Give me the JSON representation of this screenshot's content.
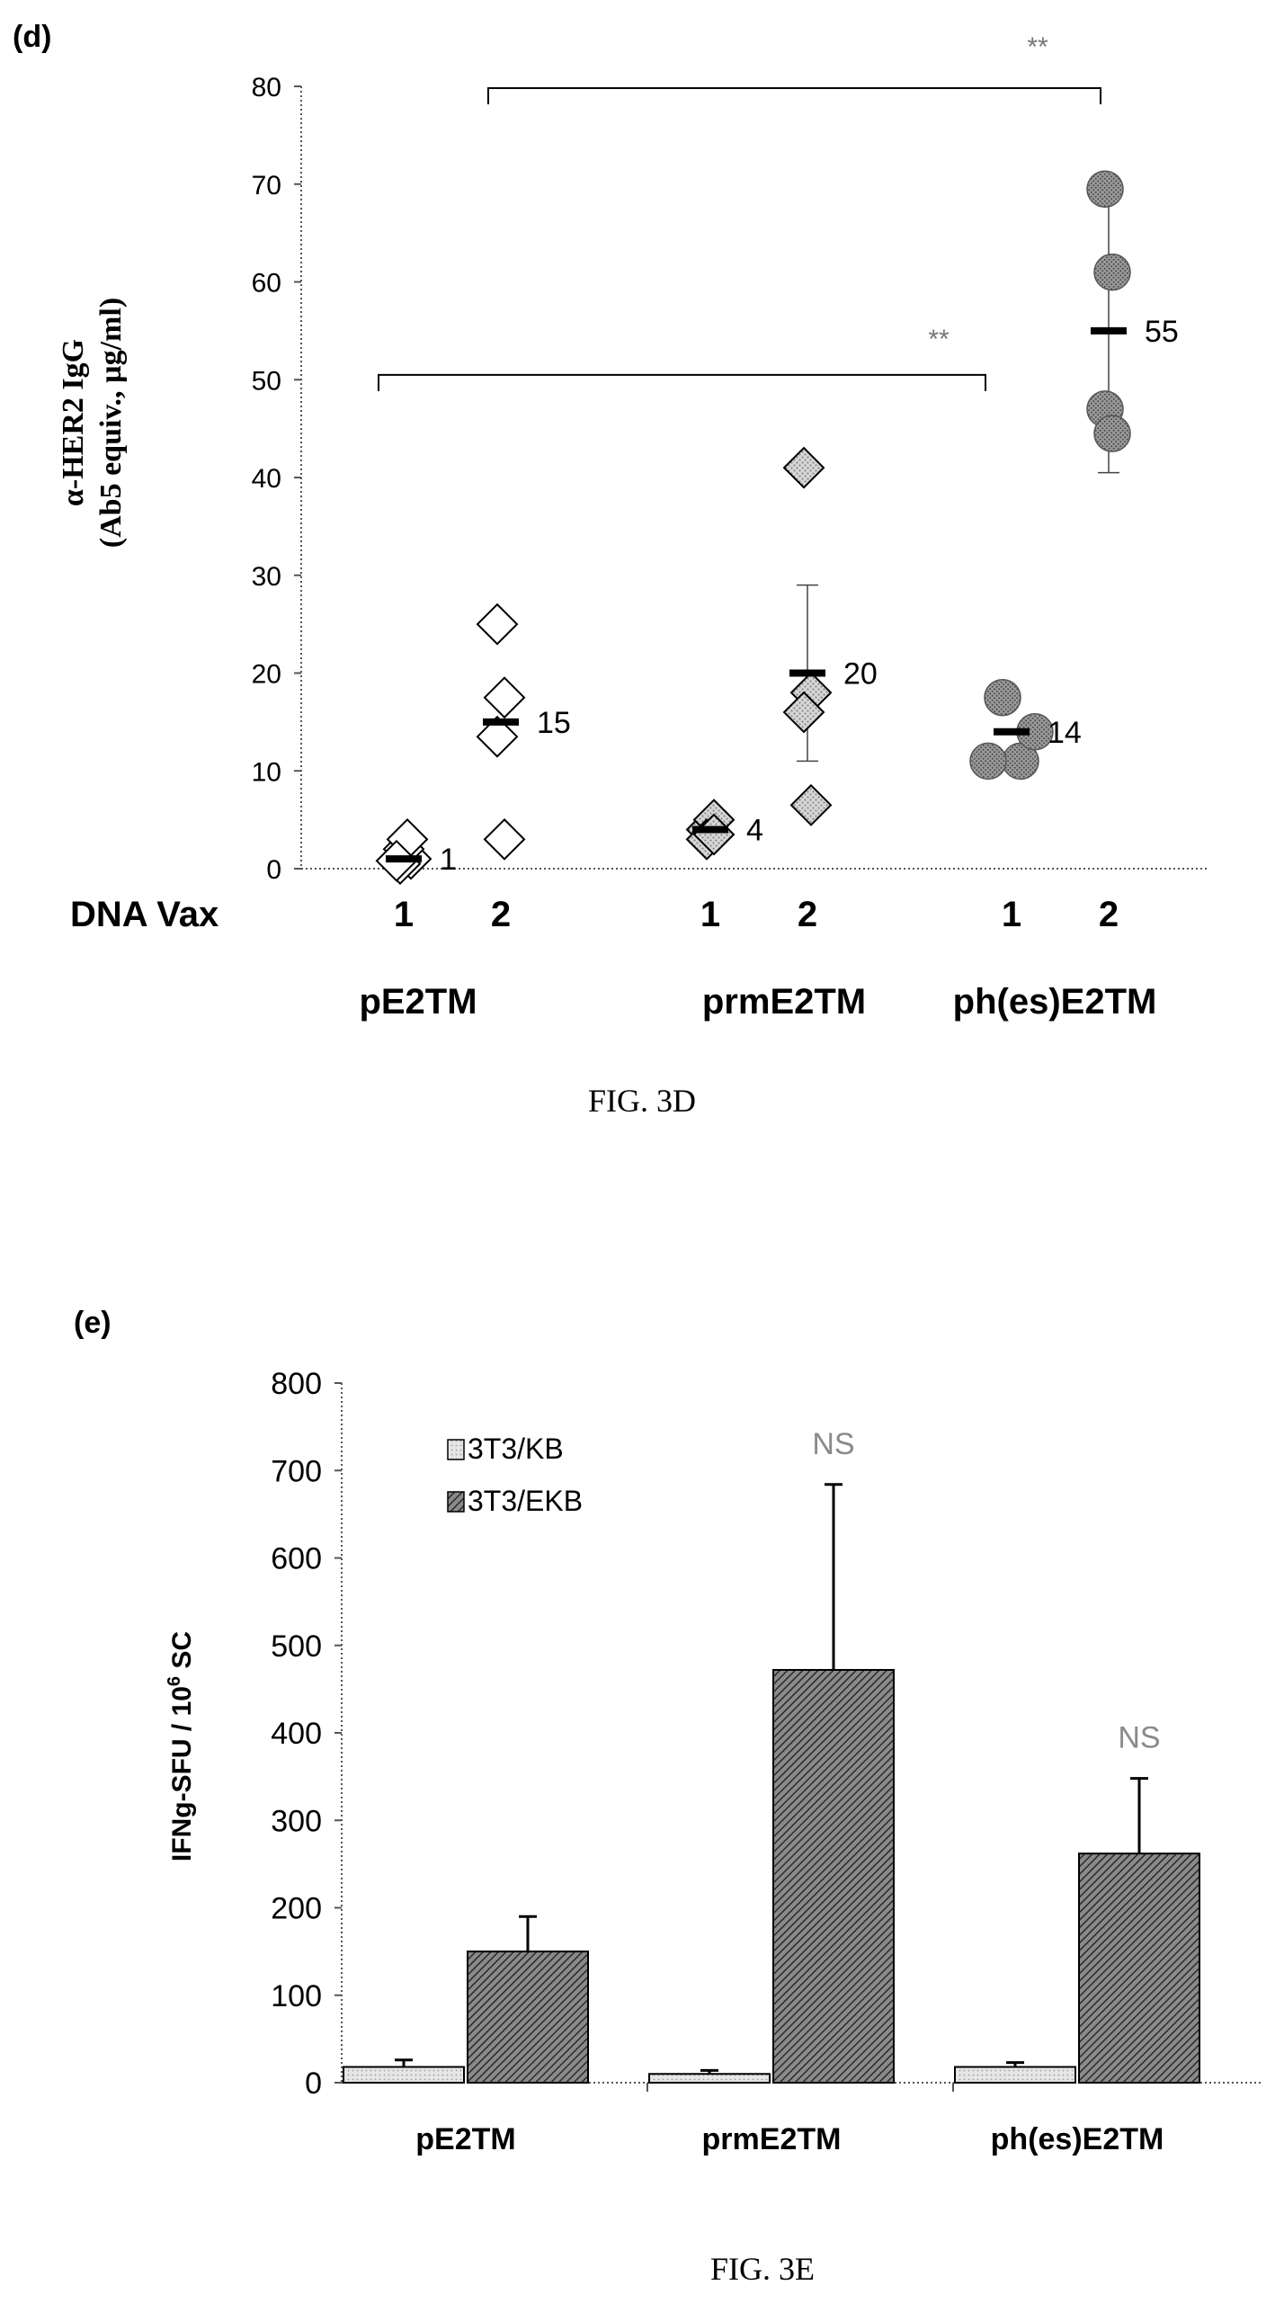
{
  "colors": {
    "ink": "#000000",
    "panel_d_group1_fill": "#ffffff",
    "panel_d_group2_fill": "#cfcfcf",
    "panel_d_group3_fill": "#8f8f8f",
    "bar_3T3_KB": "#dedede",
    "bar_3T3_EKB": "#7a7a7a",
    "ns_text": "#8a8a8a"
  },
  "panel_d": {
    "panel_label": "(d)",
    "caption": "FIG. 3D",
    "x_row_label": "DNA Vax"
  },
  "panel_e": {
    "panel_label": "(e)",
    "caption": "FIG. 3E"
  },
  "chart_data": [
    {
      "type": "scatter",
      "ylabel_line1": "α-HER2 IgG",
      "ylabel_line2": "(Ab5 equiv., µg/ml)",
      "ylim": [
        0,
        80
      ],
      "yticks": [
        0,
        10,
        20,
        30,
        40,
        50,
        60,
        70,
        80
      ],
      "ytick_labels": [
        "0",
        "10",
        "20",
        "30",
        "40",
        "50",
        "60",
        "70",
        "80"
      ],
      "x_row_label": "DNA Vax",
      "groups": [
        "pE2TM",
        "prmE2TM",
        "ph(es)E2TM"
      ],
      "series": [
        {
          "group": "pE2TM",
          "dose": "1",
          "marker": "diamond",
          "fill": "white",
          "points": [
            1,
            0.5,
            2,
            3,
            0.8
          ],
          "mean": 1,
          "mean_label": "1"
        },
        {
          "group": "pE2TM",
          "dose": "2",
          "marker": "diamond",
          "fill": "white",
          "points": [
            25,
            17.5,
            13.5,
            3
          ],
          "mean": 15,
          "mean_label": "15"
        },
        {
          "group": "prmE2TM",
          "dose": "1",
          "marker": "diamond",
          "fill": "light-hatched",
          "points": [
            4,
            5,
            3,
            3.5
          ],
          "mean": 4,
          "mean_label": "4"
        },
        {
          "group": "prmE2TM",
          "dose": "2",
          "marker": "diamond",
          "fill": "light-hatched",
          "points": [
            41,
            18,
            16,
            6.5
          ],
          "mean": 20,
          "mean_label": "20",
          "error": [
            11,
            29
          ]
        },
        {
          "group": "ph(es)E2TM",
          "dose": "1",
          "marker": "circle",
          "fill": "dark-hatched",
          "points": [
            17.5,
            11,
            11,
            14
          ],
          "mean": 14,
          "mean_label": "14"
        },
        {
          "group": "ph(es)E2TM",
          "dose": "2",
          "marker": "circle",
          "fill": "dark-hatched",
          "points": [
            69.5,
            61,
            47,
            44.5
          ],
          "mean": 55,
          "mean_label": "55",
          "error": [
            40.5,
            69.5
          ]
        }
      ],
      "brackets": [
        {
          "from": "pE2TM-1",
          "to": "ph(es)E2TM-1",
          "y": 50.5,
          "label": "**"
        },
        {
          "from": "pE2TM-2",
          "to": "ph(es)E2TM-2",
          "y": 80,
          "label": "**"
        }
      ],
      "grid": false
    },
    {
      "type": "bar",
      "ylabel": "IFNg-SFU / 10",
      "ylabel_sup": "6",
      "ylabel_suffix": " SC",
      "ylim": [
        0,
        800
      ],
      "yticks": [
        0,
        100,
        200,
        300,
        400,
        500,
        600,
        700,
        800
      ],
      "ytick_labels": [
        "0",
        "100",
        "200",
        "300",
        "400",
        "500",
        "600",
        "700",
        "800"
      ],
      "categories": [
        "pE2TM",
        "prmE2TM",
        "ph(es)E2TM"
      ],
      "series": [
        {
          "name": "3T3/KB",
          "values": [
            18,
            10,
            18
          ],
          "errors": [
            8,
            4,
            5
          ]
        },
        {
          "name": "3T3/EKB",
          "values": [
            150,
            472,
            262
          ],
          "errors": [
            40,
            212,
            86
          ]
        }
      ],
      "annotations": [
        {
          "category": "prmE2TM",
          "series": "3T3/EKB",
          "text": "NS"
        },
        {
          "category": "ph(es)E2TM",
          "series": "3T3/EKB",
          "text": "NS"
        }
      ],
      "legend_position": "top-left",
      "grid": false
    }
  ]
}
